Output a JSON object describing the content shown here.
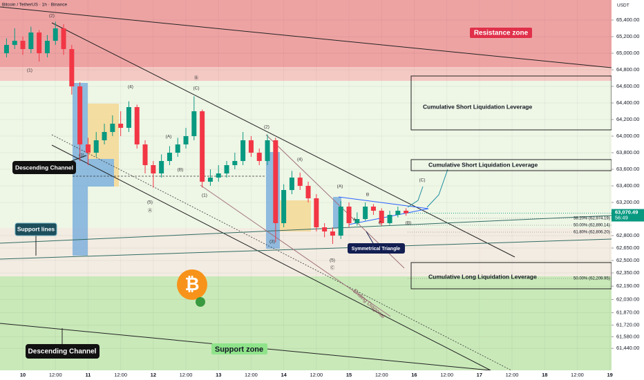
{
  "header": {
    "symbol": "Bitcoin / TetherUS · 1h · Binance",
    "currency": "USDT"
  },
  "chart_data": {
    "type": "candlestick",
    "ylim": [
      61175,
      65642
    ],
    "xlim": [
      -8.4,
      216.6
    ],
    "yticks": [
      {
        "value": 65400,
        "label": "65,400.00"
      },
      {
        "value": 65200,
        "label": "65,200.00"
      },
      {
        "value": 65000,
        "label": "65,000.00"
      },
      {
        "value": 64800,
        "label": "64,800.00"
      },
      {
        "value": 64600,
        "label": "64,600.00"
      },
      {
        "value": 64400,
        "label": "64,400.00"
      },
      {
        "value": 64200,
        "label": "64,200.00"
      },
      {
        "value": 64000,
        "label": "64,000.00"
      },
      {
        "value": 63800,
        "label": "63,800.00"
      },
      {
        "value": 63600,
        "label": "63,600.00"
      },
      {
        "value": 63400,
        "label": "63,400.00"
      },
      {
        "value": 63200,
        "label": "63,200.00"
      },
      {
        "value": 62800,
        "label": "62,800.00"
      },
      {
        "value": 62650,
        "label": "62,650.00"
      },
      {
        "value": 62500,
        "label": "62,500.00"
      },
      {
        "value": 62350,
        "label": "62,350.00"
      },
      {
        "value": 62190,
        "label": "62,190.00"
      },
      {
        "value": 62030,
        "label": "62,030.00"
      },
      {
        "value": 61870,
        "label": "61,870.00"
      },
      {
        "value": 61720,
        "label": "61,720.00"
      },
      {
        "value": 61580,
        "label": "61,580.00"
      },
      {
        "value": 61440,
        "label": "61,440.00"
      }
    ],
    "xticks": [
      {
        "value": 0,
        "label": "10"
      },
      {
        "value": 12,
        "label": "12:00"
      },
      {
        "value": 24,
        "label": "11"
      },
      {
        "value": 36,
        "label": "12:00"
      },
      {
        "value": 48,
        "label": "12"
      },
      {
        "value": 60,
        "label": "12:00"
      },
      {
        "value": 72,
        "label": "13"
      },
      {
        "value": 84,
        "label": "12:00"
      },
      {
        "value": 96,
        "label": "14"
      },
      {
        "value": 108,
        "label": "12:00"
      },
      {
        "value": 120,
        "label": "15"
      },
      {
        "value": 132,
        "label": "12:00"
      },
      {
        "value": 144,
        "label": "16"
      },
      {
        "value": 156,
        "label": "12:00"
      },
      {
        "value": 168,
        "label": "17"
      },
      {
        "value": 180,
        "label": "12:00"
      },
      {
        "value": 192,
        "label": "18"
      },
      {
        "value": 204,
        "label": "12:00"
      },
      {
        "value": 216,
        "label": "19"
      }
    ],
    "x": [
      -6,
      -3,
      0,
      3,
      6,
      9,
      12,
      15,
      18,
      21,
      24,
      27,
      30,
      33,
      36,
      39,
      42,
      45,
      48,
      51,
      54,
      57,
      60,
      63,
      66,
      69,
      72,
      75,
      78,
      81,
      84,
      87,
      90,
      93,
      96,
      99,
      102,
      105,
      108,
      111,
      114,
      117,
      120,
      123,
      126,
      129,
      132,
      135,
      138,
      141
    ],
    "open": [
      65000,
      65100,
      65150,
      65050,
      65250,
      65000,
      65150,
      65300,
      65050,
      64600,
      63900,
      63800,
      63950,
      64050,
      64150,
      64100,
      64350,
      63900,
      63650,
      63550,
      63700,
      63800,
      63900,
      64000,
      64300,
      63450,
      63500,
      63550,
      63650,
      63700,
      63950,
      63800,
      63700,
      63950,
      62950,
      63350,
      63500,
      63400,
      63250,
      62900,
      62850,
      62800,
      63150,
      62950,
      63000,
      63150,
      63100,
      62950,
      63050,
      63100
    ],
    "high": [
      65180,
      65300,
      65200,
      65320,
      65280,
      65220,
      65380,
      65350,
      65100,
      64650,
      63980,
      64050,
      64150,
      64250,
      64300,
      64420,
      64380,
      63950,
      63700,
      63780,
      63880,
      63980,
      64100,
      64480,
      64320,
      63600,
      63650,
      63700,
      63800,
      64050,
      64000,
      63850,
      64020,
      63980,
      63420,
      63580,
      63560,
      63450,
      63300,
      62950,
      62900,
      63220,
      63200,
      63080,
      63200,
      63180,
      63130,
      63100,
      63150,
      63130
    ],
    "low": [
      64950,
      65050,
      64980,
      65000,
      64900,
      64950,
      65100,
      64980,
      64500,
      63700,
      63650,
      63750,
      63900,
      64000,
      64000,
      64050,
      63850,
      63550,
      63380,
      63500,
      63650,
      63750,
      63850,
      63950,
      63380,
      63400,
      63450,
      63500,
      63600,
      63650,
      63750,
      63650,
      63650,
      62720,
      62900,
      63300,
      63350,
      63200,
      62850,
      62780,
      62700,
      62760,
      62900,
      62920,
      62980,
      63050,
      62920,
      62930,
      63020,
      63040
    ],
    "close": [
      65100,
      65150,
      65050,
      65250,
      65000,
      65150,
      65300,
      65050,
      64600,
      63900,
      63800,
      63950,
      64050,
      64150,
      64100,
      64350,
      63900,
      63650,
      63550,
      63700,
      63800,
      63900,
      64000,
      64300,
      63450,
      63500,
      63550,
      63650,
      63700,
      63950,
      63800,
      63700,
      63950,
      62950,
      63350,
      63500,
      63400,
      63250,
      62900,
      62850,
      62800,
      63150,
      62950,
      63000,
      63150,
      63100,
      62950,
      63050,
      63100,
      63070
    ],
    "up_color": "#089981",
    "down_color": "#f23645",
    "last_price": {
      "value": 63070.49,
      "label": "63,070.49"
    },
    "countdown": "56:49"
  },
  "annotations": {
    "resistance_zone": "Resistance zone",
    "short_liq_1": "Cumulative Short Liquidation Leverage",
    "short_liq_2": "Cumulative Short Liquidation Leverage",
    "long_liq": "Cumulative Long Liquidation Leverage",
    "descending_channel_1": "Descending Channel",
    "descending_channel_2": "Descending Channel",
    "support_lines": "Support lines",
    "symmetrical_triangle": "Symmetrical Triangle",
    "support_zone": "Support zone",
    "ending_diagonal": "Ending Diagonal",
    "fib_382": "38.20% (62,974.19)",
    "fib_500": "50.00% (62,890.14)",
    "fib_618": "61.80% (62,806.20)",
    "fib_500_low": "50.00% (62,209.95)",
    "wave_labels": [
      "(1)",
      "(2)",
      "(3)",
      "(4)",
      "(5)",
      "Ⓐ",
      "(A)",
      "(B)",
      "(C)",
      "Ⓑ",
      "(1)",
      "(2)",
      "(3)",
      "(4)",
      "(5)",
      "Ⓒ",
      "(A)",
      "A",
      "B",
      "C",
      "(B)",
      "(C)"
    ]
  }
}
